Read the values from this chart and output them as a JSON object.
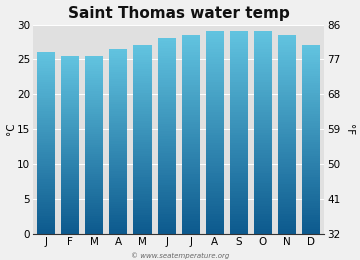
{
  "title": "Saint Thomas water temp",
  "months": [
    "J",
    "F",
    "M",
    "A",
    "M",
    "J",
    "J",
    "A",
    "S",
    "O",
    "N",
    "D"
  ],
  "values_c": [
    26.0,
    25.5,
    25.5,
    26.5,
    27.0,
    28.0,
    28.5,
    29.0,
    29.0,
    29.0,
    28.5,
    27.0
  ],
  "ylim_c": [
    0,
    30
  ],
  "yticks_c": [
    0,
    5,
    10,
    15,
    20,
    25,
    30
  ],
  "yticks_f": [
    32,
    41,
    50,
    59,
    68,
    77,
    86
  ],
  "ylabel_left": "°C",
  "ylabel_right": "°F",
  "bar_color_top": "#62c4e0",
  "bar_color_bottom": "#0d5a8e",
  "background_color": "#f0f0f0",
  "plot_bg_color": "#e0e0e0",
  "watermark": "© www.seatemperature.org",
  "title_fontsize": 11,
  "label_fontsize": 7.5,
  "tick_fontsize": 7.5,
  "bar_width": 0.75
}
